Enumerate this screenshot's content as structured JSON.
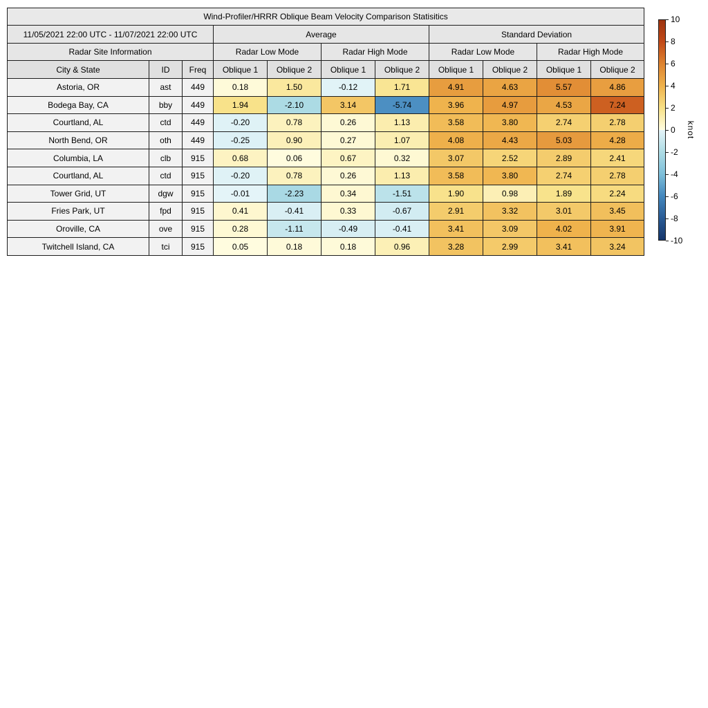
{
  "chart_data": {
    "type": "table",
    "subtype": "heatmap-colored-table",
    "title": "Wind-Profiler/HRRR Oblique Beam Velocity Comparison Statisitics",
    "header": {
      "date_range": "11/05/2021 22:00 UTC - 11/07/2021 22:00 UTC",
      "group_average": "Average",
      "group_std": "Standard Deviation",
      "site_info": "Radar Site Information",
      "mode_headers": [
        "Radar Low Mode",
        "Radar High Mode",
        "Radar Low Mode",
        "Radar High Mode"
      ],
      "col_headers": [
        "City & State",
        "ID",
        "Freq",
        "Oblique 1",
        "Oblique 2",
        "Oblique 1",
        "Oblique 2",
        "Oblique 1",
        "Oblique 2",
        "Oblique 1",
        "Oblique 2"
      ]
    },
    "rows": [
      {
        "city": "Astoria, OR",
        "id": "ast",
        "freq": "449",
        "values": [
          0.18,
          1.5,
          -0.12,
          1.71,
          4.91,
          4.63,
          5.57,
          4.86
        ]
      },
      {
        "city": "Bodega Bay, CA",
        "id": "bby",
        "freq": "449",
        "values": [
          1.94,
          -2.1,
          3.14,
          -5.74,
          3.96,
          4.97,
          4.53,
          7.24
        ]
      },
      {
        "city": "Courtland, AL",
        "id": "ctd",
        "freq": "449",
        "values": [
          -0.2,
          0.78,
          0.26,
          1.13,
          3.58,
          3.8,
          2.74,
          2.78
        ]
      },
      {
        "city": "North Bend, OR",
        "id": "oth",
        "freq": "449",
        "values": [
          -0.25,
          0.9,
          0.27,
          1.07,
          4.08,
          4.43,
          5.03,
          4.28
        ]
      },
      {
        "city": "Columbia, LA",
        "id": "clb",
        "freq": "915",
        "values": [
          0.68,
          0.06,
          0.67,
          0.32,
          3.07,
          2.52,
          2.89,
          2.41
        ]
      },
      {
        "city": "Courtland, AL",
        "id": "ctd",
        "freq": "915",
        "values": [
          -0.2,
          0.78,
          0.26,
          1.13,
          3.58,
          3.8,
          2.74,
          2.78
        ]
      },
      {
        "city": "Tower Grid, UT",
        "id": "dgw",
        "freq": "915",
        "values": [
          -0.01,
          -2.23,
          0.34,
          -1.51,
          1.9,
          0.98,
          1.89,
          2.24
        ]
      },
      {
        "city": "Fries Park, UT",
        "id": "fpd",
        "freq": "915",
        "values": [
          0.41,
          -0.41,
          0.33,
          -0.67,
          2.91,
          3.32,
          3.01,
          3.45
        ]
      },
      {
        "city": "Oroville, CA",
        "id": "ove",
        "freq": "915",
        "values": [
          0.28,
          -1.11,
          -0.49,
          -0.41,
          3.41,
          3.09,
          4.02,
          3.91
        ]
      },
      {
        "city": "Twitchell Island, CA",
        "id": "tci",
        "freq": "915",
        "values": [
          0.05,
          0.18,
          0.18,
          0.96,
          3.28,
          2.99,
          3.41,
          3.24
        ]
      }
    ],
    "colorbar": {
      "label": "knot",
      "min": -10,
      "max": 10,
      "ticks": [
        10,
        8,
        6,
        4,
        2,
        0,
        -2,
        -4,
        -6,
        -8,
        -10
      ],
      "positive_stops": [
        {
          "v": 0,
          "c": "#FFFDE1"
        },
        {
          "v": 2,
          "c": "#F8E187"
        },
        {
          "v": 4,
          "c": "#EFB24C"
        },
        {
          "v": 6,
          "c": "#DE8430"
        },
        {
          "v": 8,
          "c": "#C24A18"
        },
        {
          "v": 10,
          "c": "#9C3310"
        }
      ],
      "negative_stops": [
        {
          "v": 0,
          "c": "#E4F4F8"
        },
        {
          "v": -2,
          "c": "#AEDCE5"
        },
        {
          "v": -4,
          "c": "#7FC0DA"
        },
        {
          "v": -6,
          "c": "#4488BE"
        },
        {
          "v": -8,
          "c": "#2A5B95"
        },
        {
          "v": -10,
          "c": "#15356B"
        }
      ]
    }
  }
}
